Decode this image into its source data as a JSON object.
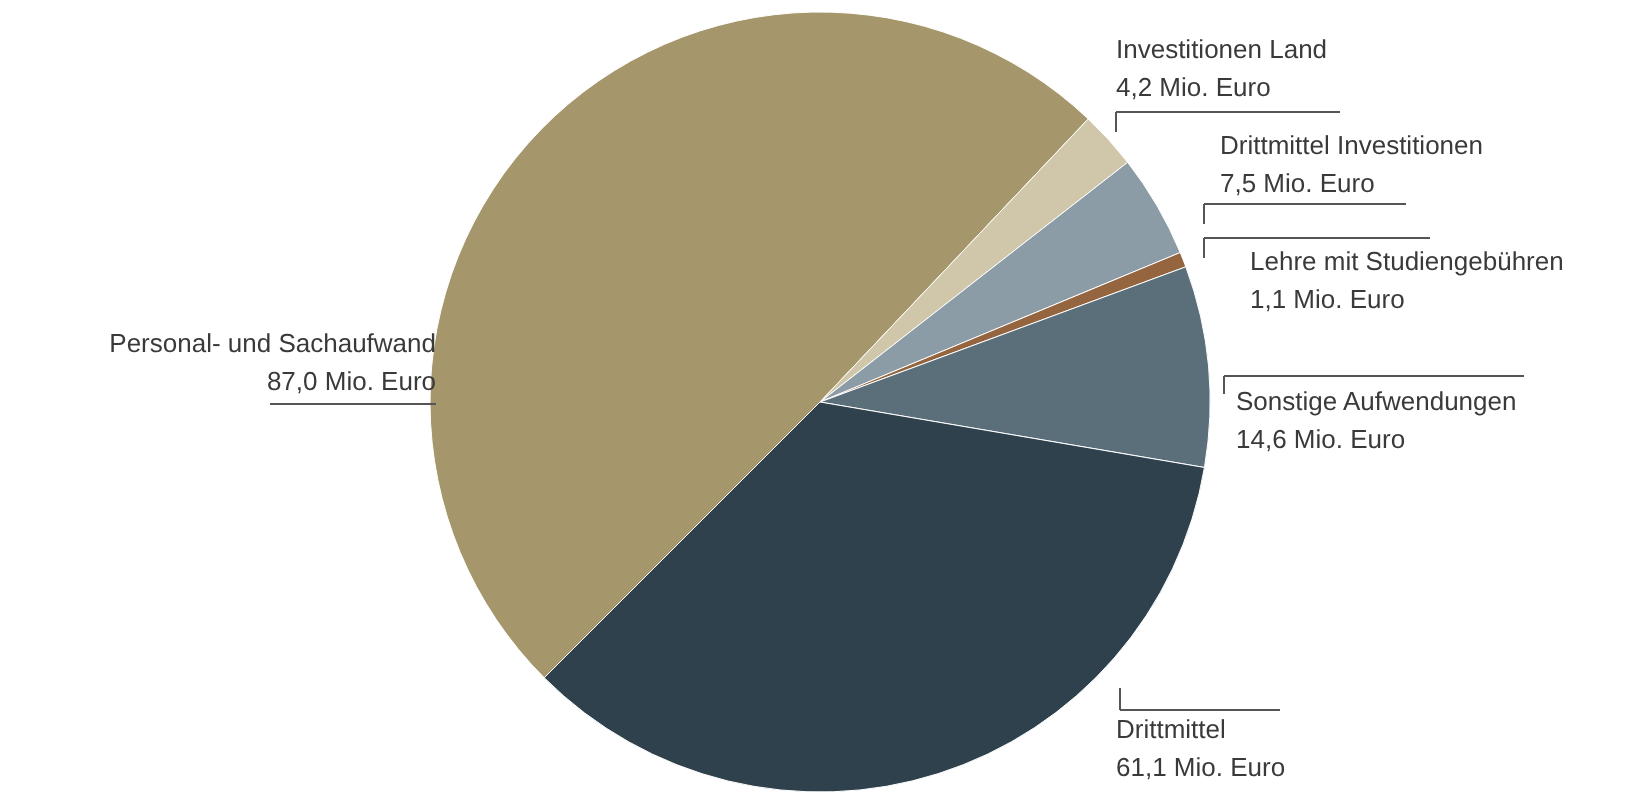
{
  "chart_data": {
    "type": "pie",
    "categories": [
      "Personal- und Sachaufwand",
      "Investitionen Land",
      "Drittmittel Investitionen",
      "Lehre mit Studiengebühren",
      "Sonstige Aufwendungen",
      "Drittmittel"
    ],
    "values": [
      87.0,
      4.2,
      7.5,
      1.1,
      14.6,
      61.1
    ],
    "value_labels": [
      "87,0 Mio. Euro",
      "4,2 Mio. Euro",
      "7,5 Mio. Euro",
      "1,1 Mio. Euro",
      "14,6 Mio. Euro",
      "61,1 Mio. Euro"
    ],
    "colors": [
      "#a5976b",
      "#d0c6a9",
      "#8c9ca6",
      "#94653e",
      "#5b6f7b",
      "#2e414d"
    ]
  }
}
